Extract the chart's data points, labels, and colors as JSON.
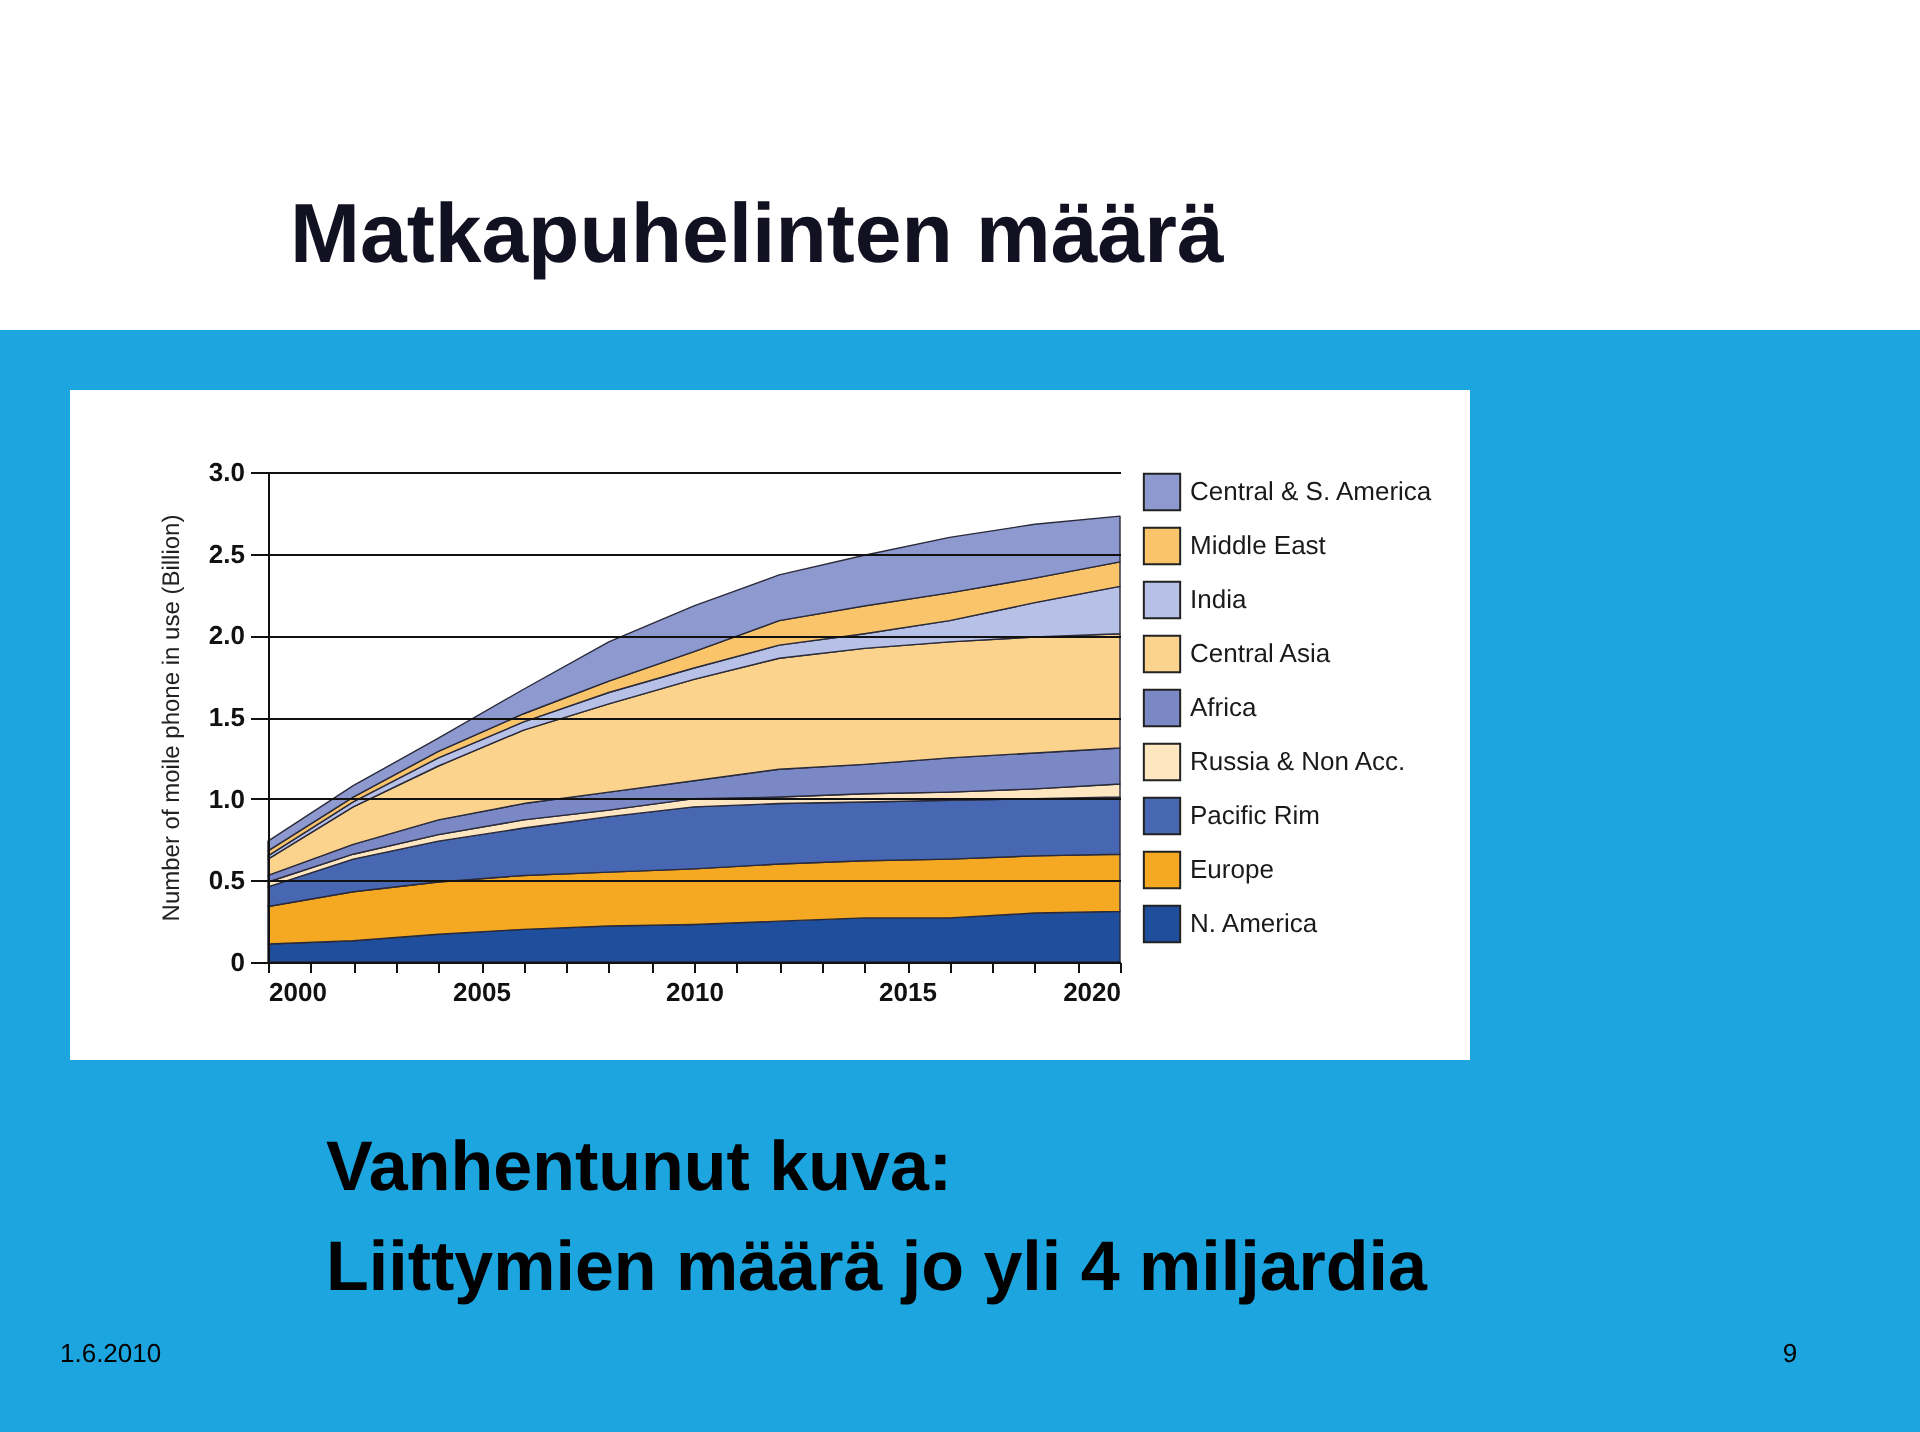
{
  "chart_data": {
    "type": "area",
    "title": "Matkapuhelinten määrä",
    "ylabel": "Number of moile phone in use (Billion)",
    "annotations": [
      "Vanhentunut kuva:",
      "Liittymien määrä jo yli 4 miljardia",
      "1.6.2010",
      "9"
    ],
    "x": [
      2000,
      2002,
      2004,
      2006,
      2008,
      2010,
      2012,
      2014,
      2016,
      2018,
      2020
    ],
    "series": [
      {
        "name": "N. America",
        "color": "#1f4e9c",
        "values": [
          0.11,
          0.13,
          0.17,
          0.2,
          0.22,
          0.23,
          0.25,
          0.27,
          0.27,
          0.3,
          0.31
        ]
      },
      {
        "name": "Europe",
        "color": "#f5a821",
        "values": [
          0.23,
          0.3,
          0.32,
          0.33,
          0.33,
          0.34,
          0.35,
          0.35,
          0.36,
          0.35,
          0.35
        ]
      },
      {
        "name": "Pacific Rim",
        "color": "#4767b3",
        "values": [
          0.12,
          0.2,
          0.25,
          0.29,
          0.34,
          0.38,
          0.37,
          0.36,
          0.36,
          0.35,
          0.35
        ]
      },
      {
        "name": "Russia & Non Acc.",
        "color": "#fde6c0",
        "values": [
          0.03,
          0.03,
          0.04,
          0.05,
          0.04,
          0.05,
          0.04,
          0.05,
          0.05,
          0.06,
          0.08
        ]
      },
      {
        "name": "Africa",
        "color": "#7a88c6",
        "values": [
          0.04,
          0.06,
          0.09,
          0.1,
          0.11,
          0.11,
          0.17,
          0.18,
          0.21,
          0.22,
          0.22
        ]
      },
      {
        "name": "Central Asia",
        "color": "#fbd38d",
        "values": [
          0.1,
          0.23,
          0.33,
          0.45,
          0.54,
          0.62,
          0.68,
          0.71,
          0.71,
          0.71,
          0.7
        ]
      },
      {
        "name": "India",
        "color": "#b7c0e6",
        "values": [
          0.02,
          0.03,
          0.05,
          0.05,
          0.07,
          0.07,
          0.08,
          0.09,
          0.13,
          0.21,
          0.29
        ]
      },
      {
        "name": "Middle East",
        "color": "#f9c46a",
        "values": [
          0.03,
          0.03,
          0.04,
          0.05,
          0.07,
          0.1,
          0.15,
          0.17,
          0.17,
          0.15,
          0.15
        ]
      },
      {
        "name": "Central & S. America",
        "color": "#8d99cf",
        "values": [
          0.06,
          0.07,
          0.08,
          0.15,
          0.24,
          0.28,
          0.28,
          0.31,
          0.34,
          0.33,
          0.28
        ]
      }
    ],
    "stacked": true,
    "xlim": [
      2000,
      2020
    ],
    "ylim": [
      0,
      3
    ],
    "xticks": [
      2000,
      {
        "value": 2001,
        "label": null
      },
      {
        "value": 2002,
        "label": null
      },
      {
        "value": 2003,
        "label": null
      },
      {
        "value": 2004,
        "label": null
      },
      2005,
      {
        "value": 2006,
        "label": null
      },
      {
        "value": 2007,
        "label": null
      },
      {
        "value": 2008,
        "label": null
      },
      {
        "value": 2009,
        "label": null
      },
      2010,
      {
        "value": 2011,
        "label": null
      },
      {
        "value": 2012,
        "label": null
      },
      {
        "value": 2013,
        "label": null
      },
      {
        "value": 2014,
        "label": null
      },
      2015,
      {
        "value": 2016,
        "label": null
      },
      {
        "value": 2017,
        "label": null
      },
      {
        "value": 2018,
        "label": null
      },
      {
        "value": 2019,
        "label": null
      },
      2020
    ],
    "yticks": [
      0,
      0.5,
      {
        "value": 1,
        "label": "1.0"
      },
      1.5,
      {
        "value": 2,
        "label": "2.0"
      },
      2.5,
      {
        "value": 3,
        "label": "3.0"
      }
    ],
    "grid": "y",
    "legend": "right"
  }
}
